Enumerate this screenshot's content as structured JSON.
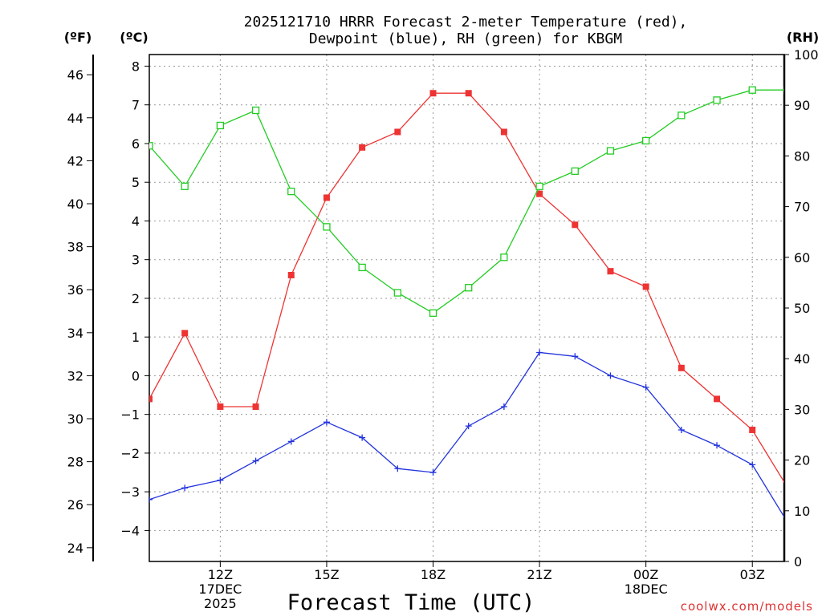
{
  "chart_data": {
    "type": "line",
    "title_line1": "2025121710 HRRR Forecast 2-meter Temperature (red),",
    "title_line2": "Dewpoint (blue), RH (green) for KBGM",
    "xlabel": "Forecast Time (UTC)",
    "credit": "coolwx.com/models",
    "credit_color": "#dd3333",
    "units": {
      "fahrenheit": "(ºF)",
      "celsius": "(ºC)",
      "rh": "(RH)"
    },
    "celsius_axis": {
      "range": [
        -4.8,
        8.3
      ],
      "ticks": [
        -4,
        -3,
        -2,
        -1,
        0,
        1,
        2,
        3,
        4,
        5,
        6,
        7,
        8
      ]
    },
    "fahrenheit_axis": {
      "ticks": [
        24,
        26,
        28,
        30,
        32,
        34,
        36,
        38,
        40,
        42,
        44,
        46
      ]
    },
    "rh_axis": {
      "range": [
        0,
        100
      ],
      "ticks": [
        0,
        10,
        20,
        30,
        40,
        50,
        60,
        70,
        80,
        90,
        100
      ]
    },
    "x_range_hours": [
      10,
      27.9
    ],
    "x_gridlines_hours": [
      12,
      15,
      18,
      21,
      24,
      27
    ],
    "x_ticks": [
      {
        "hour": 12,
        "labels": [
          "12Z",
          "17DEC",
          "2025"
        ]
      },
      {
        "hour": 15,
        "labels": [
          "15Z"
        ]
      },
      {
        "hour": 18,
        "labels": [
          "18Z"
        ]
      },
      {
        "hour": 21,
        "labels": [
          "21Z"
        ]
      },
      {
        "hour": 24,
        "labels": [
          "00Z",
          "18DEC"
        ]
      },
      {
        "hour": 27,
        "labels": [
          "03Z"
        ]
      }
    ],
    "hours": [
      10,
      11,
      12,
      13,
      14,
      15,
      16,
      17,
      18,
      19,
      20,
      21,
      22,
      23,
      24,
      25,
      26,
      27,
      28
    ],
    "series": [
      {
        "name": "Temperature",
        "color": "#ee3333",
        "marker": "filled-square",
        "axis": "celsius",
        "values": [
          -0.6,
          1.1,
          -0.8,
          -0.8,
          2.6,
          4.6,
          5.9,
          6.3,
          7.3,
          7.3,
          6.3,
          4.7,
          3.9,
          2.7,
          2.3,
          0.2,
          -0.6,
          -1.4,
          -2.9
        ]
      },
      {
        "name": "Dewpoint",
        "color": "#2233dd",
        "marker": "plus",
        "axis": "celsius",
        "values": [
          -3.2,
          -2.9,
          -2.7,
          -2.2,
          -1.7,
          -1.2,
          -1.6,
          -2.4,
          -2.5,
          -1.3,
          -0.8,
          0.6,
          0.5,
          0.0,
          -0.3,
          -1.4,
          -1.8,
          -2.3,
          -3.8
        ]
      },
      {
        "name": "RH",
        "color": "#22cc22",
        "marker": "open-square",
        "axis": "rh",
        "values": [
          82,
          74,
          86,
          89,
          73,
          66,
          58,
          53,
          49,
          54,
          60,
          74,
          77,
          81,
          83,
          88,
          91,
          93,
          93
        ]
      }
    ]
  }
}
